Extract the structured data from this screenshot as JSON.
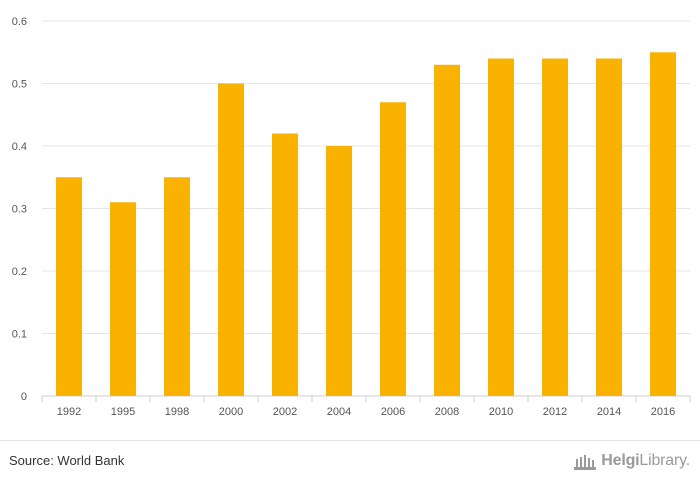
{
  "chart_data": {
    "type": "bar",
    "categories": [
      "1992",
      "1995",
      "1998",
      "2000",
      "2002",
      "2004",
      "2006",
      "2008",
      "2010",
      "2012",
      "2014",
      "2016"
    ],
    "values": [
      0.35,
      0.31,
      0.35,
      0.5,
      0.42,
      0.4,
      0.47,
      0.53,
      0.54,
      0.54,
      0.54,
      0.55
    ],
    "yticks": [
      "0",
      "0.1",
      "0.2",
      "0.3",
      "0.4",
      "0.5",
      "0.6"
    ],
    "ylim": [
      0,
      0.6
    ],
    "grid": true,
    "title": "",
    "xlabel": "",
    "ylabel": "",
    "bar_color": "#f9b200"
  },
  "footer": {
    "source": "Source: World Bank",
    "logo_bold": "Helgi",
    "logo_light": "Library."
  }
}
